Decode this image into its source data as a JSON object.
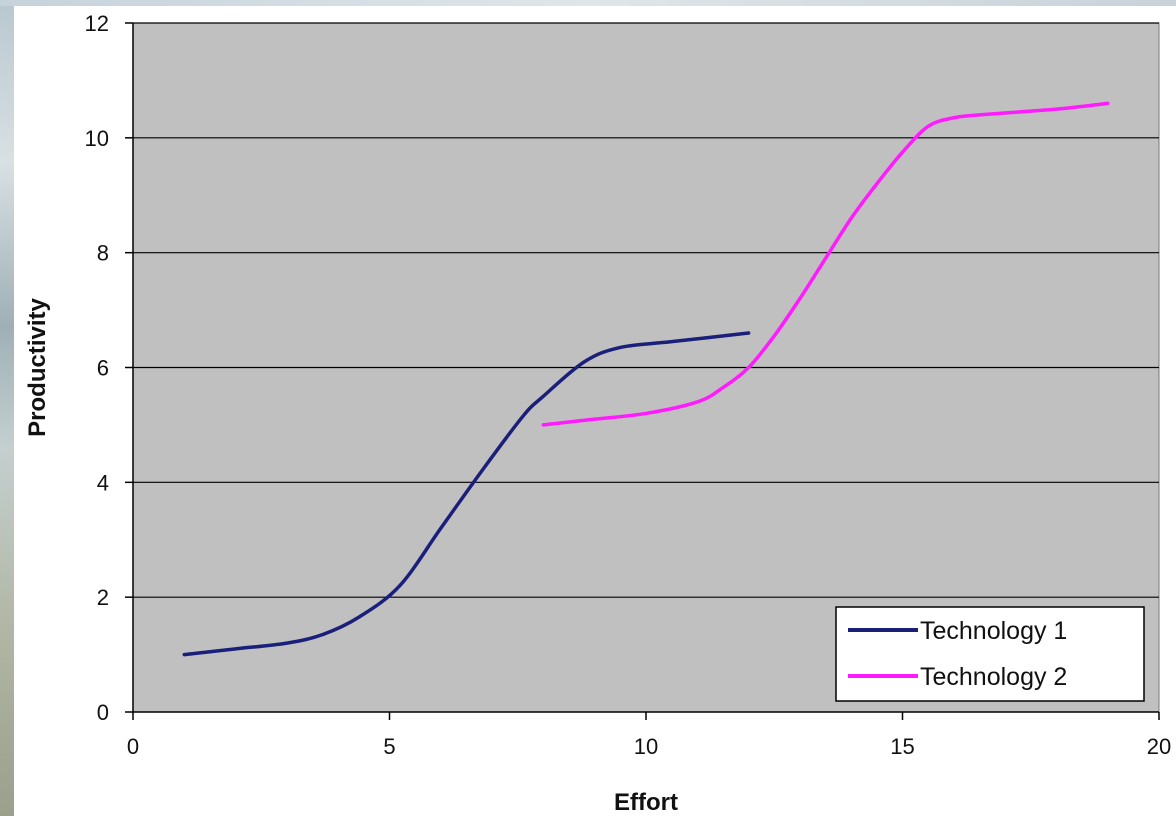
{
  "chart_data": {
    "type": "line",
    "title": "",
    "xlabel": "Effort",
    "ylabel": "Productivity",
    "xlim": [
      0,
      20
    ],
    "ylim": [
      0,
      12
    ],
    "xticks": [
      0,
      5,
      10,
      15,
      20
    ],
    "yticks": [
      0,
      2,
      4,
      6,
      8,
      10,
      12
    ],
    "grid": "horizontal",
    "legend_position": "bottom-right",
    "plot_background": "#c0c0c0",
    "series": [
      {
        "name": "Technology 1",
        "color": "#1a1f7a",
        "x": [
          1,
          2,
          3,
          3.7,
          4.4,
          5.2,
          6,
          6.8,
          7.6,
          8,
          8.8,
          9.5,
          10.5,
          12
        ],
        "y": [
          1.0,
          1.1,
          1.2,
          1.35,
          1.65,
          2.2,
          3.2,
          4.2,
          5.15,
          5.5,
          6.1,
          6.35,
          6.45,
          6.6
        ]
      },
      {
        "name": "Technology 2",
        "color": "#ff1aff",
        "x": [
          8,
          9,
          10,
          11,
          11.5,
          12,
          12.5,
          13,
          13.5,
          14,
          14.5,
          15,
          15.5,
          16,
          16.5,
          18,
          19
        ],
        "y": [
          5.0,
          5.1,
          5.2,
          5.4,
          5.65,
          6.0,
          6.55,
          7.2,
          7.9,
          8.6,
          9.2,
          9.75,
          10.2,
          10.35,
          10.4,
          10.5,
          10.6
        ]
      }
    ]
  }
}
